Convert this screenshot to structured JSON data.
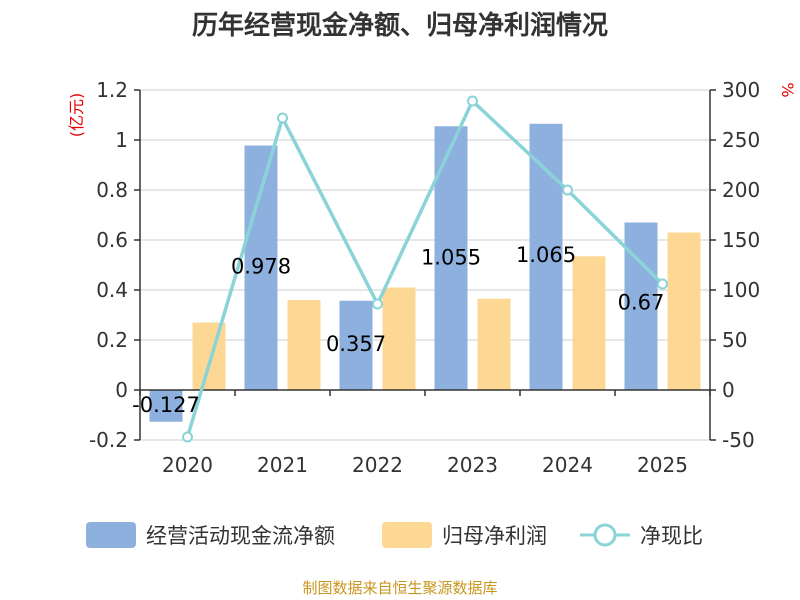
{
  "chart_data": {
    "type": "bar+line",
    "title": "历年经营现金净额、归母净利润情况",
    "categories": [
      "2020",
      "2021",
      "2022",
      "2023",
      "2024",
      "2025"
    ],
    "left_axis": {
      "unit": "(亿元)",
      "min": -0.2,
      "max": 1.2,
      "ticks": [
        "-0.2",
        "0",
        "0.2",
        "0.4",
        "0.6",
        "0.8",
        "1",
        "1.2"
      ]
    },
    "right_axis": {
      "unit": "%",
      "min": -50,
      "max": 300,
      "ticks": [
        "-50",
        "0",
        "50",
        "100",
        "150",
        "200",
        "250",
        "300"
      ]
    },
    "series": [
      {
        "name": "经营活动现金流净额",
        "type": "bar",
        "axis": "left",
        "color": "#8eb0de",
        "values": [
          -0.127,
          0.978,
          0.357,
          1.055,
          1.065,
          0.67
        ],
        "labels": [
          "-0.127",
          "0.978",
          "0.357",
          "1.055",
          "1.065",
          "0.67"
        ]
      },
      {
        "name": "归母净利润",
        "type": "bar",
        "axis": "left",
        "color": "#fdd895",
        "values": [
          0.27,
          0.36,
          0.41,
          0.365,
          0.535,
          0.63
        ]
      },
      {
        "name": "净现比",
        "type": "line",
        "axis": "right",
        "color": "#8ad4d8",
        "values": [
          -47,
          272,
          86,
          289,
          200,
          106
        ]
      }
    ],
    "legend_position": "bottom",
    "grid": true
  },
  "source": "制图数据来自恒生聚源数据库"
}
